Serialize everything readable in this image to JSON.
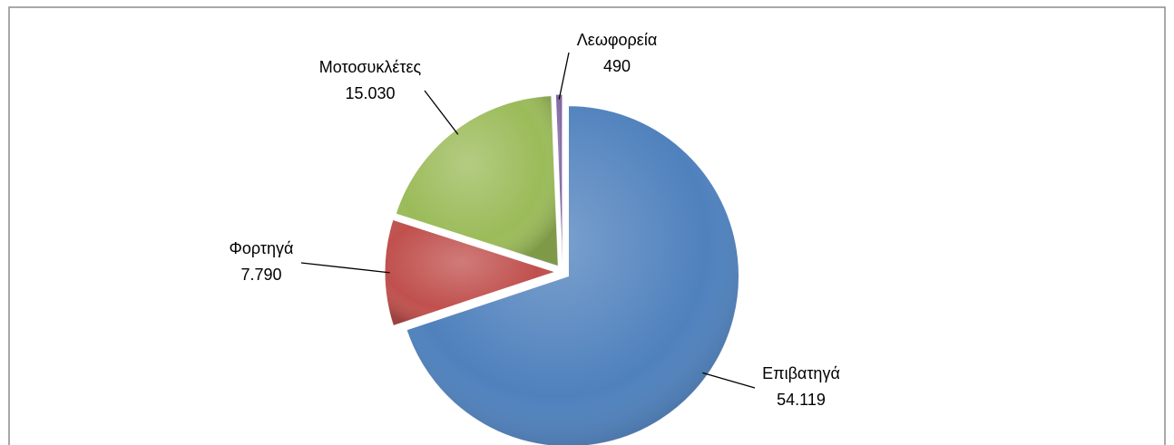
{
  "chart_data": {
    "type": "pie",
    "categories": [
      "Επιβατηγά",
      "Φορτηγά",
      "Μοτοσυκλέτες",
      "Λεωφορεία"
    ],
    "values": [
      54119,
      7790,
      15030,
      490
    ],
    "value_labels": [
      "54.119",
      "7.790",
      "15.030",
      "490"
    ],
    "colors": [
      "#4f81bd",
      "#c0504d",
      "#9bbb59",
      "#8064a2"
    ]
  }
}
